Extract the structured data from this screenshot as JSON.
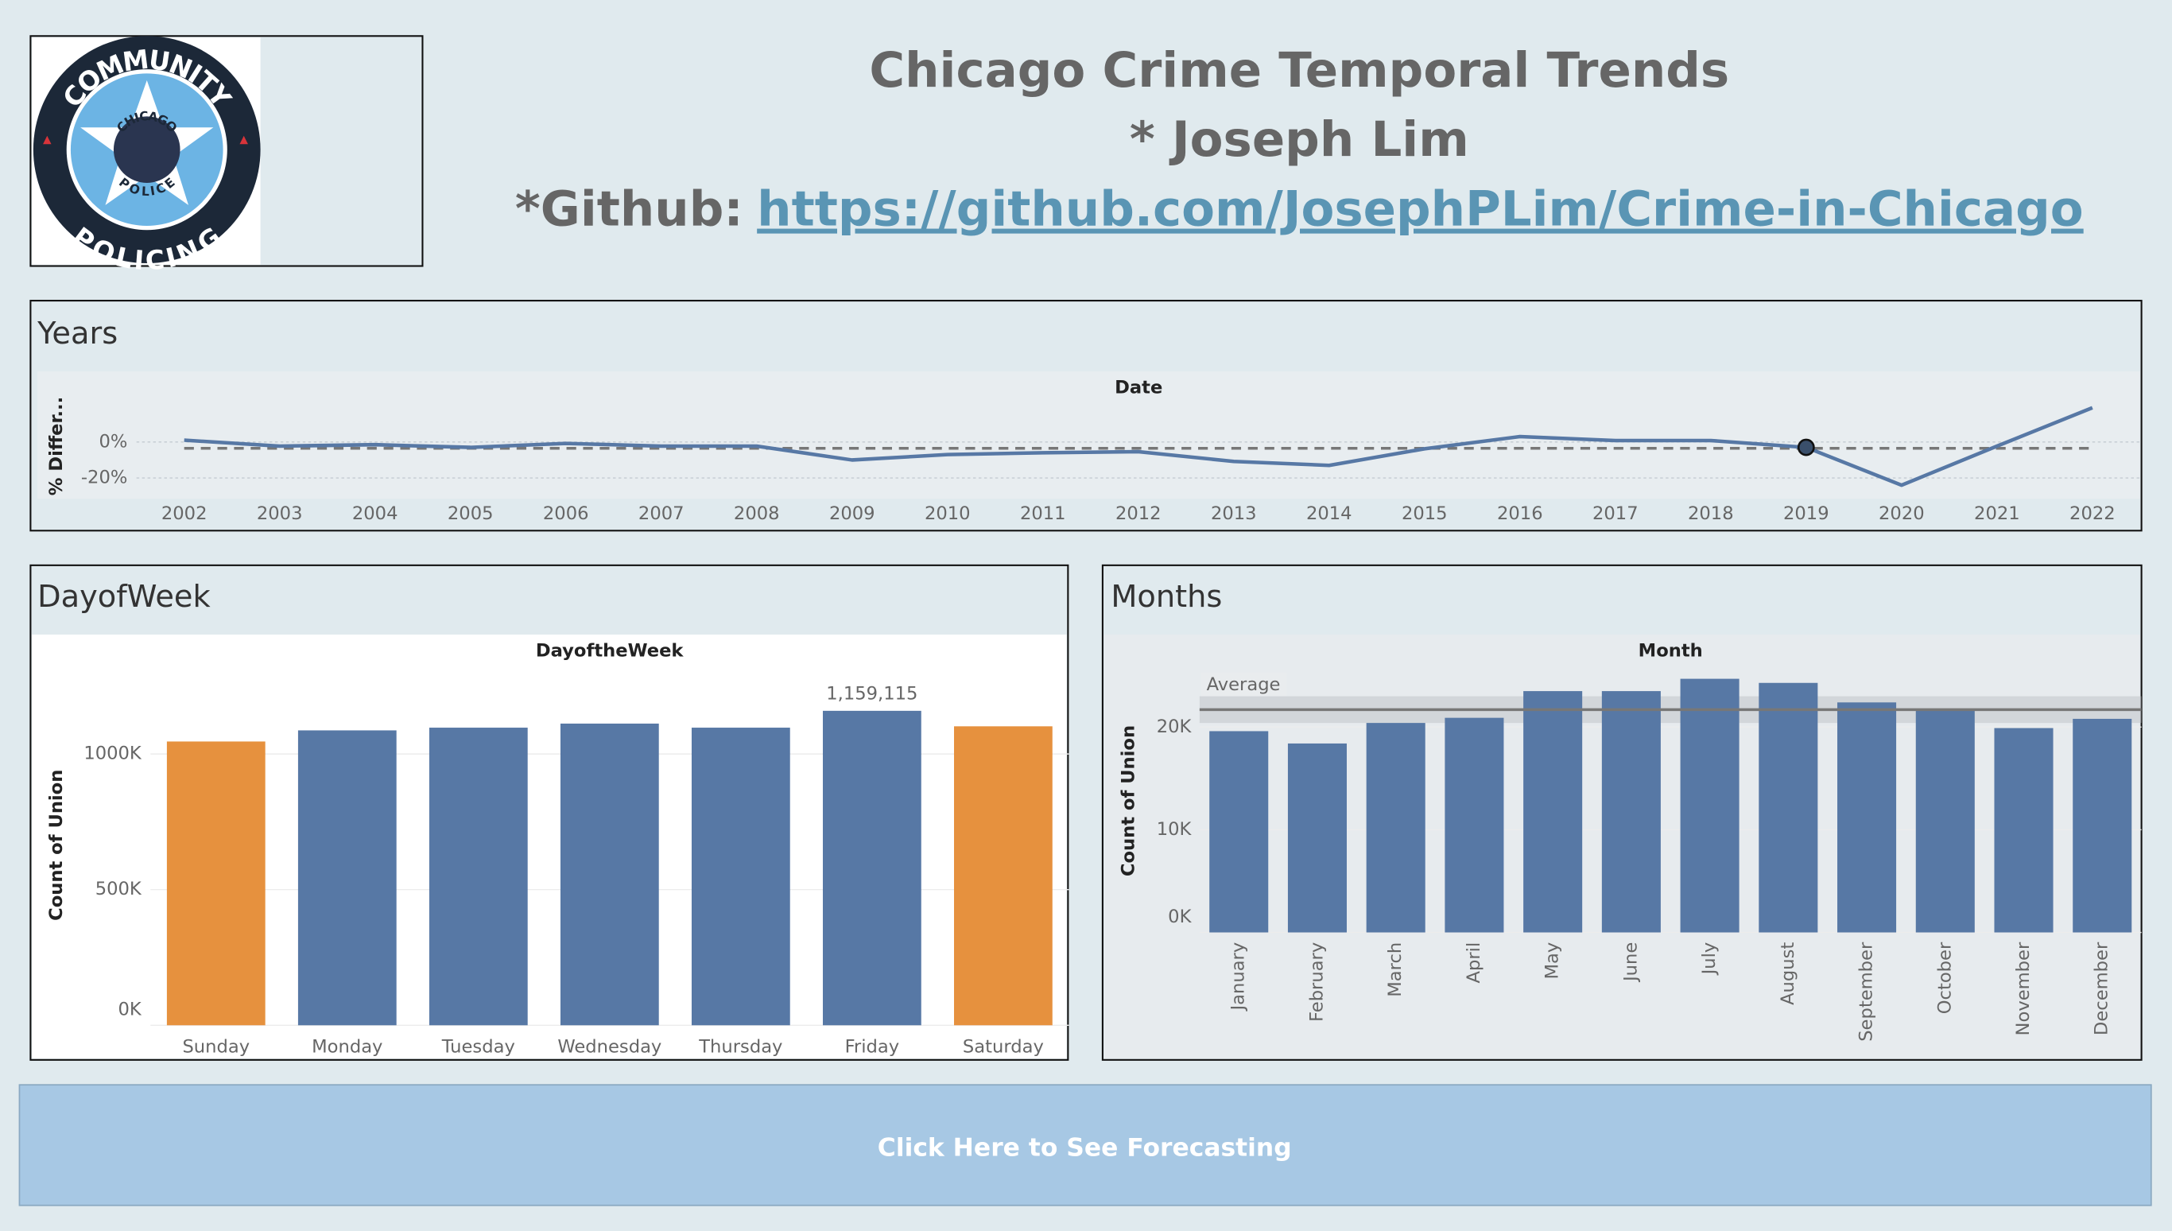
{
  "header": {
    "title": "Chicago Crime Temporal Trends",
    "author": "* Joseph Lim",
    "github_prefix": "*Github:",
    "github_url": "https://github.com/JosephPLim/Crime-in-Chicago"
  },
  "logo": {
    "top": "COMMUNITY",
    "bottom": "POLICING",
    "inner_top": "CHICAGO",
    "inner_bottom": "POLICE"
  },
  "chart_data": [
    {
      "type": "line",
      "title": "Years",
      "x_label": "Date",
      "y_label": "% Differ...",
      "x": [
        2002,
        2003,
        2004,
        2005,
        2006,
        2007,
        2008,
        2009,
        2010,
        2011,
        2012,
        2013,
        2014,
        2015,
        2016,
        2017,
        2018,
        2019,
        2020,
        2021,
        2022
      ],
      "values": [
        1,
        -2.3,
        -1.5,
        -3,
        -0.8,
        -2.3,
        -2.3,
        -10,
        -7,
        -6,
        -5.4,
        -10.8,
        -13,
        -3.8,
        3,
        0.8,
        0.8,
        -3,
        -24,
        -2.3,
        19
      ],
      "color": "#5778a5",
      "xlim": [
        2001.5,
        2022.5
      ],
      "xticks": [
        2002,
        2003,
        2004,
        2005,
        2006,
        2007,
        2008,
        2009,
        2010,
        2011,
        2012,
        2013,
        2014,
        2015,
        2016,
        2017,
        2018,
        2019,
        2020,
        2021,
        2022
      ],
      "ylim": [
        -30,
        25
      ],
      "yticks": [
        {
          "value": 0,
          "label": "0%"
        },
        {
          "value": -20,
          "label": "-20%"
        }
      ],
      "reference_line": -3.5,
      "highlighted_x": 2019
    },
    {
      "type": "bar",
      "title": "DayofWeek",
      "x_label": "DayoftheWeek",
      "y_label": "Count of Union",
      "categories": [
        "Sunday",
        "Monday",
        "Tuesday",
        "Wednesday",
        "Thursday",
        "Friday",
        "Saturday"
      ],
      "values": [
        1046000,
        1087000,
        1097000,
        1112000,
        1097000,
        1159115,
        1102000
      ],
      "value_labels": [
        null,
        null,
        null,
        null,
        null,
        "1,159,115",
        null
      ],
      "colors": [
        "#e6913e",
        "#5778a5",
        "#5778a5",
        "#5778a5",
        "#5778a5",
        "#5778a5",
        "#e6913e"
      ],
      "ylim": [
        0,
        1430000
      ],
      "yticks": [
        {
          "value": 0,
          "label": "0K"
        },
        {
          "value": 500000,
          "label": "500K"
        },
        {
          "value": 1000000,
          "label": "1000K"
        }
      ]
    },
    {
      "type": "bar",
      "title": "Months",
      "x_label": "Month",
      "y_label": "Count of Union",
      "categories": [
        "January",
        "February",
        "March",
        "April",
        "May",
        "June",
        "July",
        "August",
        "September",
        "October",
        "November",
        "December"
      ],
      "values": [
        19600,
        18400,
        20400,
        20900,
        23500,
        23500,
        24700,
        24300,
        22400,
        21600,
        19900,
        20800
      ],
      "color": "#5778a5",
      "ylim": [
        0,
        25500
      ],
      "yticks": [
        {
          "value": 0,
          "label": "0K"
        },
        {
          "value": 10000,
          "label": "10K"
        },
        {
          "value": 20000,
          "label": "20K"
        }
      ],
      "reference_line": 21700,
      "reference_band": [
        20400,
        23000
      ],
      "reference_label": "Average",
      "rotate_labels": true
    }
  ],
  "button": {
    "label": "Click Here to See Forecasting"
  }
}
